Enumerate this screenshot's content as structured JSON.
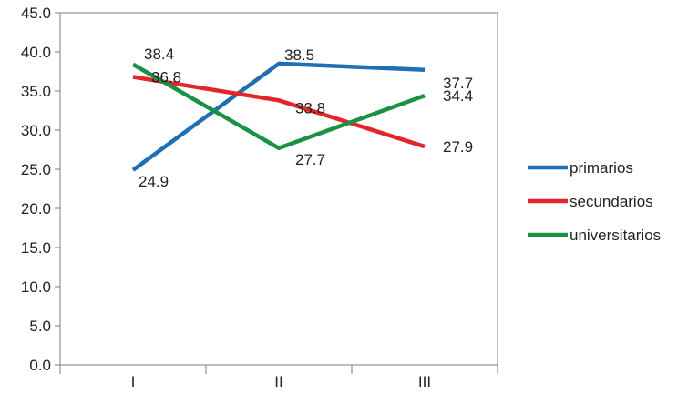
{
  "chart_data": {
    "type": "line",
    "categories": [
      "I",
      "II",
      "III"
    ],
    "ylim": [
      0,
      45
    ],
    "yticks": [
      0,
      5,
      10,
      15,
      20,
      25,
      30,
      35,
      40,
      45
    ],
    "ytick_labels": [
      "0.0",
      "5.0",
      "10.0",
      "15.0",
      "20.0",
      "25.0",
      "30.0",
      "35.0",
      "40.0",
      "45.0"
    ],
    "grid": false,
    "legend_position": "right",
    "series": [
      {
        "name": "primarios",
        "color": "#1f6fb2",
        "values": [
          24.9,
          38.5,
          37.7
        ],
        "labels": [
          "24.9",
          "38.5",
          "37.7"
        ]
      },
      {
        "name": "secundarios",
        "color": "#e3262b",
        "values": [
          36.8,
          33.8,
          27.9
        ],
        "labels": [
          "36.8",
          "33.8",
          "27.9"
        ]
      },
      {
        "name": "universitarios",
        "color": "#1a9245",
        "values": [
          38.4,
          27.7,
          34.4
        ],
        "labels": [
          "38.4",
          "27.7",
          "34.4"
        ]
      }
    ]
  }
}
